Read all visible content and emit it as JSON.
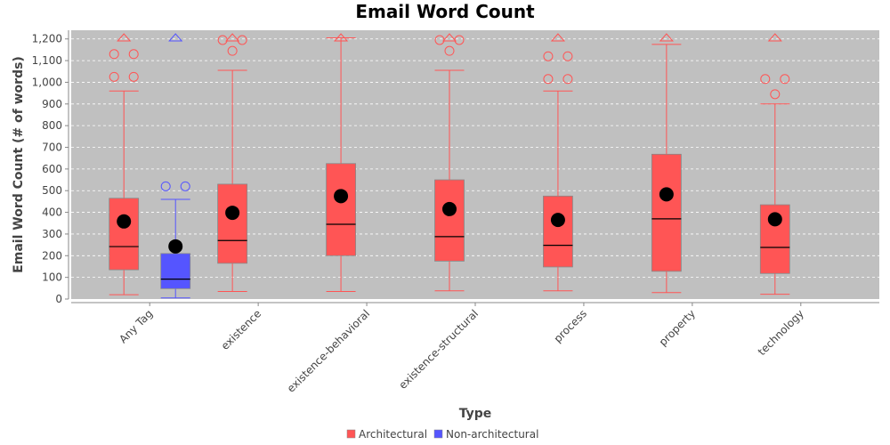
{
  "chart_data": {
    "type": "box",
    "title": "Email Word Count",
    "xlabel": "Type",
    "ylabel": "Email Word Count (# of words)",
    "ylim": [
      0,
      1240
    ],
    "yticks": [
      0,
      100,
      200,
      300,
      400,
      500,
      600,
      700,
      800,
      900,
      1000,
      1100,
      1200
    ],
    "ytick_labels": [
      "0",
      "100",
      "200",
      "300",
      "400",
      "500",
      "600",
      "700",
      "800",
      "900",
      "1,000",
      "1,100",
      "1,200"
    ],
    "grid": true,
    "legend_position": "bottom",
    "categories": [
      "Any Tag",
      "existence",
      "existence-behavioral",
      "existence-structural",
      "process",
      "property",
      "technology"
    ],
    "series": [
      {
        "name": "Architectural",
        "color": "#ff5555",
        "boxes": [
          {
            "category": "Any Tag",
            "min": 20,
            "q1": 135,
            "median": 242,
            "q3": 465,
            "max": 960,
            "mean": 358,
            "outliers": [
              1025,
              1025,
              1130,
              1130
            ],
            "far_out": true
          },
          {
            "category": "existence",
            "min": 35,
            "q1": 165,
            "median": 270,
            "q3": 530,
            "max": 1055,
            "mean": 398,
            "outliers": [
              1145,
              1195,
              1195
            ],
            "far_out": true
          },
          {
            "category": "existence-behavioral",
            "min": 35,
            "q1": 200,
            "median": 345,
            "q3": 625,
            "max": 1205,
            "mean": 475,
            "outliers": [],
            "far_out": true
          },
          {
            "category": "existence-structural",
            "min": 38,
            "q1": 175,
            "median": 288,
            "q3": 550,
            "max": 1055,
            "mean": 415,
            "outliers": [
              1145,
              1195,
              1195
            ],
            "far_out": true
          },
          {
            "category": "process",
            "min": 38,
            "q1": 148,
            "median": 248,
            "q3": 475,
            "max": 960,
            "mean": 365,
            "outliers": [
              1015,
              1015,
              1120,
              1120
            ],
            "far_out": true
          },
          {
            "category": "property",
            "min": 30,
            "q1": 128,
            "median": 370,
            "q3": 668,
            "max": 1175,
            "mean": 483,
            "outliers": [],
            "far_out": true
          },
          {
            "category": "technology",
            "min": 22,
            "q1": 118,
            "median": 238,
            "q3": 435,
            "max": 900,
            "mean": 368,
            "outliers": [
              945,
              1015,
              1015
            ],
            "far_out": true
          }
        ]
      },
      {
        "name": "Non-architectural",
        "color": "#5555ff",
        "boxes": [
          {
            "category": "Any Tag",
            "min": 5,
            "q1": 48,
            "median": 92,
            "q3": 210,
            "max": 460,
            "mean": 243,
            "outliers": [
              520,
              520
            ],
            "far_out": true
          }
        ]
      }
    ]
  }
}
